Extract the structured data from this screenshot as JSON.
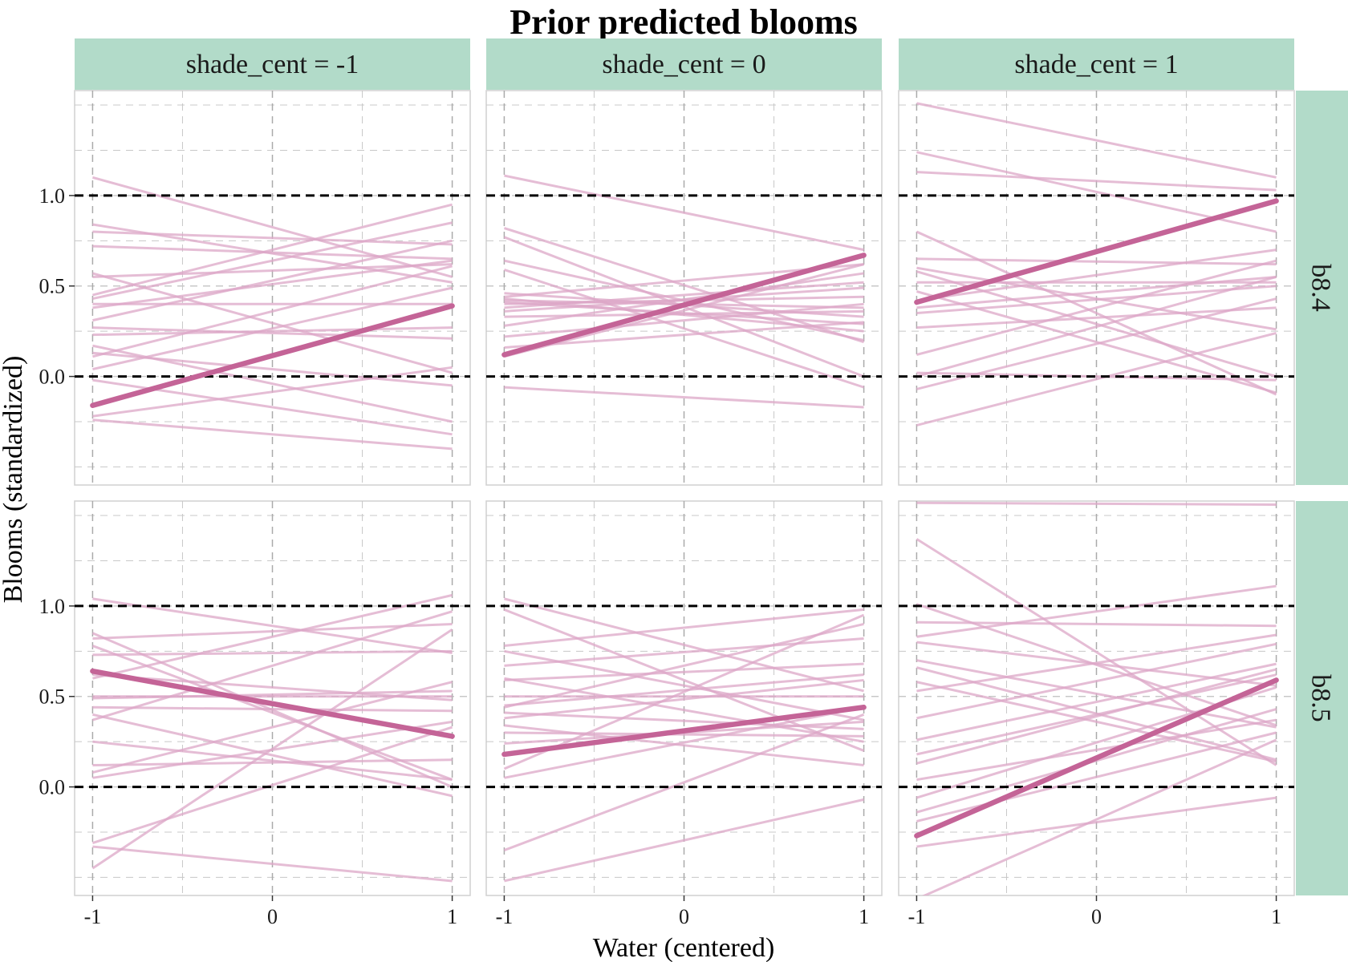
{
  "chart_data": {
    "type": "line",
    "title": "Prior predicted blooms",
    "xlabel": "Water (centered)",
    "ylabel": "Blooms (standardized)",
    "xlim": [
      -1.1,
      1.1
    ],
    "ylim": [
      -0.6,
      1.58
    ],
    "x_ticks": [
      -1,
      0,
      1
    ],
    "x_tick_labels": [
      "-1",
      "0",
      "1"
    ],
    "y_ticks": [
      0.0,
      0.5,
      1.0
    ],
    "y_tick_labels": [
      "0.0",
      "0.5",
      "1.0"
    ],
    "reference_lines_y": [
      0.0,
      1.0
    ],
    "grid": true,
    "colors": {
      "strip_fill": "#b2dbc9",
      "sample_line": "#dca7c7",
      "highlight_line": "#c46497",
      "reference_line": "#000000",
      "grid_line": "#c8c8c8"
    },
    "columns": [
      {
        "label": "shade_cent = -1",
        "shade_cent": -1
      },
      {
        "label": "shade_cent = 0",
        "shade_cent": 0
      },
      {
        "label": "shade_cent = 1",
        "shade_cent": 1
      }
    ],
    "rows": [
      {
        "label": "b8.4"
      },
      {
        "label": "b8.5"
      }
    ],
    "panels": [
      {
        "row": "b8.4",
        "column": "shade_cent = -1",
        "highlight": {
          "x": [
            -1,
            1
          ],
          "y": [
            -0.16,
            0.39
          ]
        },
        "samples": [
          [
            1.1,
            0.55
          ],
          [
            0.84,
            0.52
          ],
          [
            0.8,
            0.73
          ],
          [
            0.72,
            0.65
          ],
          [
            0.57,
            0.02
          ],
          [
            0.45,
            0.95
          ],
          [
            0.43,
            0.85
          ],
          [
            0.38,
            0.64
          ],
          [
            0.31,
            0.75
          ],
          [
            0.27,
            0.21
          ],
          [
            0.17,
            -0.25
          ],
          [
            0.11,
            0.61
          ],
          [
            0.04,
            0.49
          ],
          [
            -0.02,
            -0.32
          ],
          [
            -0.22,
            0.05
          ],
          [
            -0.24,
            -0.4
          ],
          [
            0.55,
            0.62
          ],
          [
            0.23,
            0.27
          ],
          [
            0.13,
            -0.05
          ],
          [
            0.4,
            0.4
          ]
        ]
      },
      {
        "row": "b8.4",
        "column": "shade_cent = 0",
        "highlight": {
          "x": [
            -1,
            1
          ],
          "y": [
            0.12,
            0.67
          ]
        },
        "samples": [
          [
            1.11,
            0.7
          ],
          [
            0.82,
            0.19
          ],
          [
            0.77,
            0.0
          ],
          [
            0.64,
            0.2
          ],
          [
            0.59,
            -0.06
          ],
          [
            0.46,
            0.33
          ],
          [
            0.44,
            0.62
          ],
          [
            0.43,
            0.25
          ],
          [
            0.42,
            0.38
          ],
          [
            0.41,
            0.29
          ],
          [
            0.4,
            0.44
          ],
          [
            0.38,
            0.52
          ],
          [
            0.33,
            0.36
          ],
          [
            0.28,
            0.57
          ],
          [
            0.22,
            0.4
          ],
          [
            0.16,
            0.3
          ],
          [
            -0.06,
            -0.17
          ],
          [
            0.11,
            0.62
          ],
          [
            0.36,
            0.49
          ]
        ]
      },
      {
        "row": "b8.4",
        "column": "shade_cent = 1",
        "highlight": {
          "x": [
            -1,
            1
          ],
          "y": [
            0.41,
            0.97
          ]
        },
        "samples": [
          [
            1.51,
            1.1
          ],
          [
            1.24,
            0.8
          ],
          [
            1.13,
            1.03
          ],
          [
            0.8,
            -0.1
          ],
          [
            0.65,
            0.62
          ],
          [
            0.6,
            0.26
          ],
          [
            0.58,
            0.0
          ],
          [
            0.52,
            0.52
          ],
          [
            0.47,
            -0.09
          ],
          [
            0.42,
            0.7
          ],
          [
            0.38,
            0.55
          ],
          [
            0.12,
            0.64
          ],
          [
            0.02,
            -0.02
          ],
          [
            0.0,
            0.55
          ],
          [
            -0.07,
            0.43
          ],
          [
            -0.27,
            0.24
          ],
          [
            0.35,
            0.5
          ],
          [
            0.27,
            0.38
          ]
        ]
      },
      {
        "row": "b8.5",
        "column": "shade_cent = -1",
        "highlight": {
          "x": [
            -1,
            1
          ],
          "y": [
            0.64,
            0.28
          ]
        },
        "samples": [
          [
            1.04,
            0.74
          ],
          [
            0.85,
            0.0
          ],
          [
            0.82,
            0.9
          ],
          [
            0.78,
            0.04
          ],
          [
            0.73,
            0.75
          ],
          [
            0.6,
            1.06
          ],
          [
            0.49,
            0.53
          ],
          [
            0.44,
            0.42
          ],
          [
            0.4,
            -0.05
          ],
          [
            0.37,
            0.97
          ],
          [
            0.12,
            0.15
          ],
          [
            0.08,
            0.58
          ],
          [
            0.05,
            0.36
          ],
          [
            -0.31,
            0.33
          ],
          [
            -0.33,
            -0.52
          ],
          [
            -0.45,
            0.87
          ],
          [
            0.62,
            0.48
          ],
          [
            0.25,
            0.04
          ],
          [
            0.5,
            0.5
          ]
        ]
      },
      {
        "row": "b8.5",
        "column": "shade_cent = 0",
        "highlight": {
          "x": [
            -1,
            1
          ],
          "y": [
            0.18,
            0.44
          ]
        },
        "samples": [
          [
            1.04,
            0.53
          ],
          [
            0.98,
            0.2
          ],
          [
            0.78,
            0.98
          ],
          [
            0.75,
            0.37
          ],
          [
            0.67,
            0.82
          ],
          [
            0.59,
            0.68
          ],
          [
            0.5,
            0.5
          ],
          [
            0.44,
            0.9
          ],
          [
            0.41,
            0.32
          ],
          [
            0.38,
            0.59
          ],
          [
            0.34,
            0.12
          ],
          [
            0.3,
            0.28
          ],
          [
            0.24,
            0.36
          ],
          [
            0.1,
            0.95
          ],
          [
            0.05,
            0.44
          ],
          [
            -0.35,
            0.4
          ],
          [
            -0.52,
            -0.07
          ],
          [
            0.45,
            0.62
          ],
          [
            0.6,
            0.25
          ]
        ]
      },
      {
        "row": "b8.5",
        "column": "shade_cent = 1",
        "highlight": {
          "x": [
            -1,
            1
          ],
          "y": [
            -0.27,
            0.59
          ]
        },
        "samples": [
          [
            1.57,
            1.56
          ],
          [
            1.37,
            0.12
          ],
          [
            1.01,
            0.34
          ],
          [
            0.91,
            0.89
          ],
          [
            0.83,
            1.11
          ],
          [
            0.7,
            0.33
          ],
          [
            0.66,
            0.15
          ],
          [
            0.58,
            0.14
          ],
          [
            0.53,
            0.84
          ],
          [
            0.38,
            0.79
          ],
          [
            0.26,
            0.68
          ],
          [
            0.18,
            0.62
          ],
          [
            0.13,
            0.65
          ],
          [
            0.04,
            0.37
          ],
          [
            -0.06,
            0.55
          ],
          [
            -0.14,
            0.43
          ],
          [
            -0.19,
            0.3
          ],
          [
            -0.33,
            -0.06
          ],
          [
            -0.62,
            0.26
          ],
          [
            0.8,
            0.56
          ]
        ]
      }
    ]
  }
}
